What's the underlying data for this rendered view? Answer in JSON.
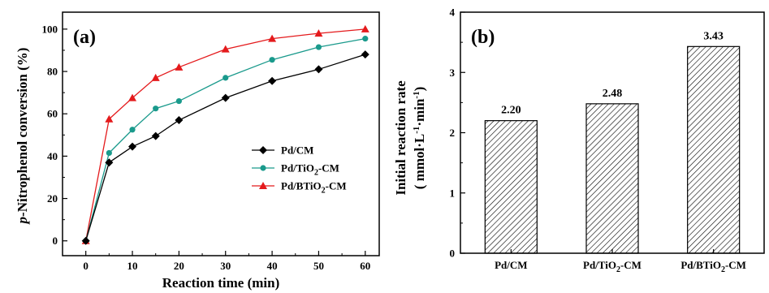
{
  "chart_data": [
    {
      "panel": "(a)",
      "type": "line",
      "xlabel": "Reaction time (min)",
      "ylabel_prefix": "p",
      "ylabel_rest": "-Nitrophenol conversion (%)",
      "xlim": [
        -5,
        63
      ],
      "ylim": [
        -7,
        108
      ],
      "xticks": [
        0,
        10,
        20,
        30,
        40,
        50,
        60
      ],
      "yticks": [
        0,
        20,
        40,
        60,
        80,
        100
      ],
      "legend_position": "right-center",
      "x": [
        0,
        5,
        10,
        15,
        20,
        30,
        40,
        50,
        60
      ],
      "series": [
        {
          "name": "Pd/CM",
          "name_main": "Pd/CM",
          "name_sub": "",
          "name_tail": "",
          "color": "#000000",
          "marker": "diamond",
          "values": [
            0,
            37,
            44.5,
            49.5,
            57,
            67.5,
            75.5,
            81,
            88
          ]
        },
        {
          "name": "Pd/TiO2-CM",
          "name_main": "Pd/TiO",
          "name_sub": "2",
          "name_tail": "-CM",
          "color": "#1a9a8c",
          "marker": "circle",
          "values": [
            0,
            41.5,
            52.5,
            62.5,
            66,
            77,
            85.5,
            91.5,
            95.5
          ]
        },
        {
          "name": "Pd/BTiO2-CM",
          "name_main": "Pd/BTiO",
          "name_sub": "2",
          "name_tail": "-CM",
          "color": "#e41a1c",
          "marker": "triangle",
          "values": [
            0,
            57.5,
            67.5,
            77,
            82,
            90.5,
            95.5,
            98,
            100
          ]
        }
      ]
    },
    {
      "panel": "(b)",
      "type": "bar",
      "ylabel_line1": "Initial reaction rate",
      "ylabel_line2_main": "( mmol·L",
      "ylabel_line2_sup1": "-1",
      "ylabel_line2_mid": "·min",
      "ylabel_line2_sup2": "-1",
      "ylabel_line2_tail": ")",
      "ylim": [
        0,
        4
      ],
      "yticks": [
        0,
        1,
        2,
        3,
        4
      ],
      "categories": [
        {
          "label": "Pd/CM",
          "main": "Pd/CM",
          "sub": "",
          "tail": ""
        },
        {
          "label": "Pd/TiO2-CM",
          "main": "Pd/TiO",
          "sub": "2",
          "tail": "-CM"
        },
        {
          "label": "Pd/BTiO2-CM",
          "main": "Pd/BTiO",
          "sub": "2",
          "tail": "-CM"
        }
      ],
      "values": [
        2.2,
        2.48,
        3.43
      ],
      "value_labels": [
        "2.20",
        "2.48",
        "3.43"
      ],
      "bar_fill": "diagonal-hatch"
    }
  ]
}
